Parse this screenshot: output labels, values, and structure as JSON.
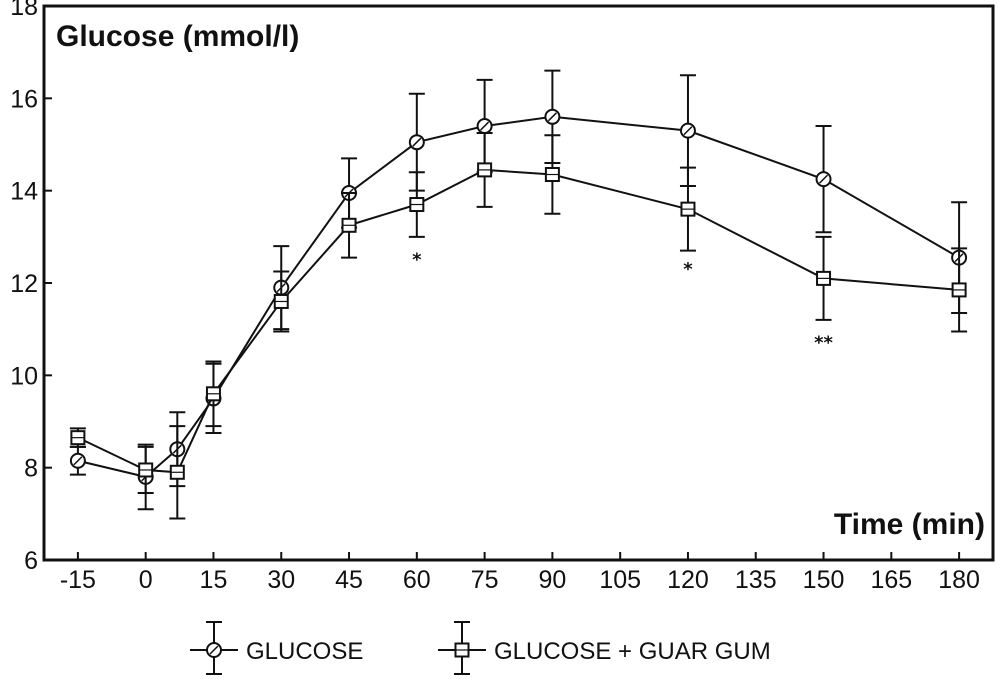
{
  "chart_data": {
    "type": "line",
    "ylabel": "Glucose (mmol/l)",
    "xlabel": "Time (min)",
    "ylim": [
      6,
      18
    ],
    "yticks": [
      6,
      8,
      10,
      12,
      14,
      16,
      18
    ],
    "xlim": [
      -22.5,
      187.5
    ],
    "xticks": [
      -15,
      0,
      15,
      30,
      45,
      60,
      75,
      90,
      105,
      120,
      135,
      150,
      165,
      180
    ],
    "grid": false,
    "legend_position": "bottom",
    "series": [
      {
        "name": "GLUCOSE",
        "marker": "circle",
        "x": [
          -15,
          0,
          7,
          15,
          30,
          45,
          60,
          75,
          90,
          120,
          150,
          180
        ],
        "y": [
          8.15,
          7.8,
          8.4,
          9.5,
          11.9,
          13.95,
          15.05,
          15.4,
          15.6,
          15.3,
          14.25,
          12.55
        ],
        "err": [
          0.3,
          0.7,
          0.8,
          0.75,
          0.9,
          0.75,
          1.05,
          1.0,
          1.0,
          1.2,
          1.15,
          1.2
        ]
      },
      {
        "name": "GLUCOSE + GUAR GUM",
        "marker": "square",
        "x": [
          -15,
          0,
          7,
          15,
          30,
          45,
          60,
          75,
          90,
          120,
          150,
          180
        ],
        "y": [
          8.65,
          7.95,
          7.9,
          9.6,
          11.6,
          13.25,
          13.7,
          14.45,
          14.35,
          13.6,
          12.1,
          11.85
        ],
        "err": [
          0.2,
          0.5,
          1.0,
          0.7,
          0.65,
          0.7,
          0.7,
          0.8,
          0.85,
          0.9,
          0.9,
          0.9
        ]
      }
    ],
    "annotations": [
      {
        "text": "*",
        "x": 60,
        "y": 12.55
      },
      {
        "text": "*",
        "x": 120,
        "y": 12.35
      },
      {
        "text": "**",
        "x": 150,
        "y": 10.75
      }
    ]
  }
}
